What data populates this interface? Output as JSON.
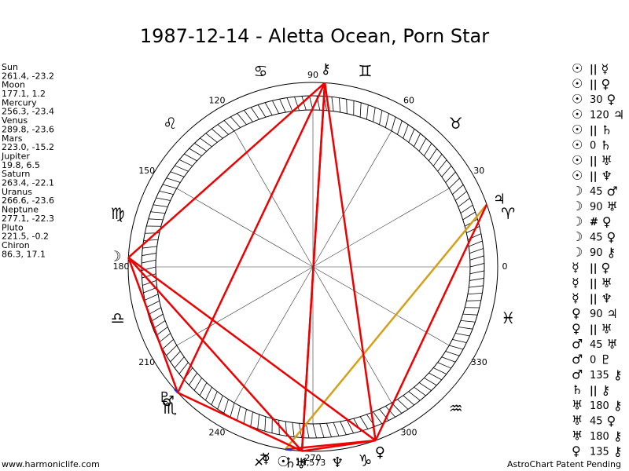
{
  "header": {
    "title": "1987-12-14 - Aletta Ocean, Porn Star"
  },
  "planets": [
    {
      "name": "Sun",
      "glyph": "☉",
      "coords": "261.4, -23.2"
    },
    {
      "name": "Moon",
      "glyph": "☽",
      "coords": "177.1, 1.2"
    },
    {
      "name": "Mercury",
      "glyph": "☿",
      "coords": "256.3, -23.4"
    },
    {
      "name": "Venus",
      "glyph": "♀",
      "coords": "289.8, -23.6"
    },
    {
      "name": "Mars",
      "glyph": "♂",
      "coords": "223.0, -15.2"
    },
    {
      "name": "Jupiter",
      "glyph": "♃",
      "coords": "19.8, 6.5"
    },
    {
      "name": "Saturn",
      "glyph": "♄",
      "coords": "263.4, -22.1"
    },
    {
      "name": "Uranus",
      "glyph": "♅",
      "coords": "266.6, -23.6"
    },
    {
      "name": "Neptune",
      "glyph": "♆",
      "coords": "277.1, -22.3"
    },
    {
      "name": "Pluto",
      "glyph": "♇",
      "coords": "221.5, -0.2"
    },
    {
      "name": "Chiron",
      "glyph": "⚷",
      "coords": "86.3, 17.1"
    }
  ],
  "aspects": [
    {
      "p1": "☉",
      "aspect": "||",
      "p2": "☿"
    },
    {
      "p1": "☉",
      "aspect": "||",
      "p2": "♀"
    },
    {
      "p1": "☉",
      "aspect": "30",
      "p2": "♀"
    },
    {
      "p1": "☉",
      "aspect": "120",
      "p2": "♃"
    },
    {
      "p1": "☉",
      "aspect": "||",
      "p2": "♄"
    },
    {
      "p1": "☉",
      "aspect": "0",
      "p2": "♄"
    },
    {
      "p1": "☉",
      "aspect": "||",
      "p2": "♅"
    },
    {
      "p1": "☉",
      "aspect": "||",
      "p2": "♆"
    },
    {
      "p1": "☽",
      "aspect": "45",
      "p2": "♂"
    },
    {
      "p1": "☽",
      "aspect": "90",
      "p2": "♅"
    },
    {
      "p1": "☽",
      "aspect": "#",
      "p2": "♀"
    },
    {
      "p1": "☽",
      "aspect": "45",
      "p2": "♀"
    },
    {
      "p1": "☽",
      "aspect": "90",
      "p2": "⚷"
    },
    {
      "p1": "☿",
      "aspect": "||",
      "p2": "♀"
    },
    {
      "p1": "☿",
      "aspect": "||",
      "p2": "♅"
    },
    {
      "p1": "☿",
      "aspect": "||",
      "p2": "♆"
    },
    {
      "p1": "♀",
      "aspect": "90",
      "p2": "♃"
    },
    {
      "p1": "♀",
      "aspect": "||",
      "p2": "♅"
    },
    {
      "p1": "♂",
      "aspect": "45",
      "p2": "♅"
    },
    {
      "p1": "♂",
      "aspect": "0",
      "p2": "♇"
    },
    {
      "p1": "♂",
      "aspect": "135",
      "p2": "⚷"
    },
    {
      "p1": "♄",
      "aspect": "||",
      "p2": "⚷"
    },
    {
      "p1": "♅",
      "aspect": "180",
      "p2": "⚷"
    },
    {
      "p1": "♅",
      "aspect": "45",
      "p2": "♀"
    },
    {
      "p1": "♅",
      "aspect": "180",
      "p2": "⚷"
    },
    {
      "p1": "♀",
      "aspect": "135",
      "p2": "⚷"
    }
  ],
  "wheel": {
    "degree_labels": [
      "0",
      "30",
      "60",
      "90",
      "120",
      "150",
      "180",
      "210",
      "240",
      "270",
      "300",
      "330"
    ],
    "zodiac": [
      "♈",
      "♉",
      "♊",
      "♋",
      "♌",
      "♍",
      "♎",
      "♏",
      "♐",
      "♑",
      "♒",
      "♓"
    ],
    "bottom_number": "19,573"
  },
  "footer": {
    "left": "www.harmoniclife.com",
    "right": "AstroChart Patent Pending"
  }
}
